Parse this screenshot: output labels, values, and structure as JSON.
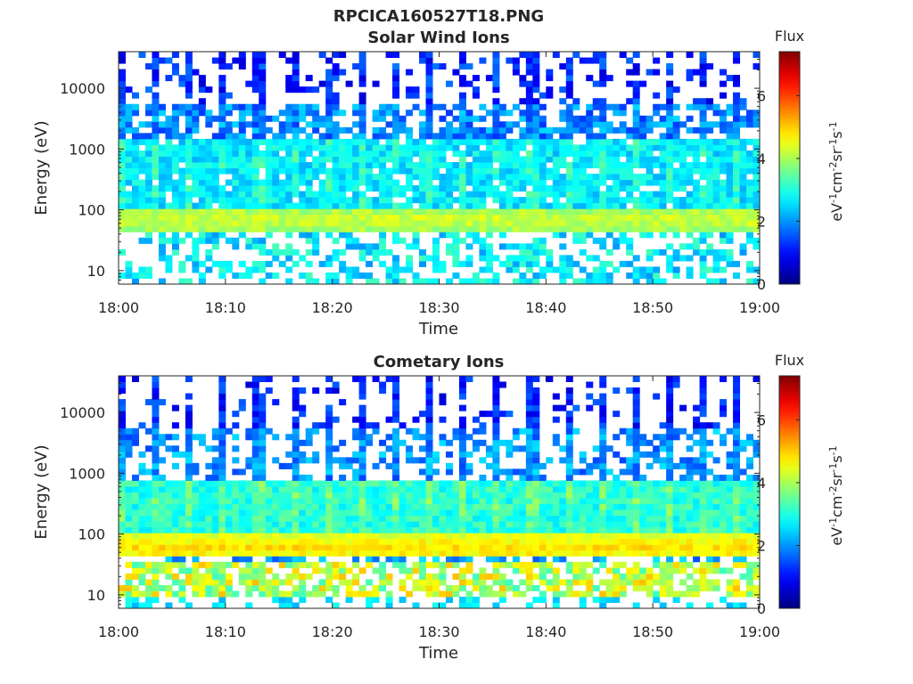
{
  "figure_title": "RPCICA160527T18.PNG",
  "colorbar_title": "Flux",
  "colorbar_unit_html": "eV<tspan baseline-shift='super' font-size='11'>-1</tspan>cm<tspan baseline-shift='super' font-size='11'>-2</tspan>sr<tspan baseline-shift='super' font-size='11'>-1</tspan>s<tspan baseline-shift='super' font-size='11'>-1</tspan>",
  "colorbar_unit": "eV-1cm-2sr-1s-1",
  "colors": {
    "jet_low": "#00008f",
    "jet_high": "#800000",
    "axis": "#262626"
  },
  "chart_data": [
    {
      "type": "heatmap",
      "title": "Solar Wind Ions",
      "xlabel": "Time",
      "ylabel": "Energy (eV)",
      "x_ticks": [
        "18:00",
        "18:10",
        "18:20",
        "18:30",
        "18:40",
        "18:50",
        "19:00"
      ],
      "xlim": [
        "18:00",
        "19:00"
      ],
      "y_scale": "log",
      "y_ticks": [
        10,
        100,
        1000,
        10000
      ],
      "y_tick_labels": [
        "10",
        "100",
        "1000",
        "10000"
      ],
      "ylim": [
        6,
        40000
      ],
      "colorbar": {
        "label": "Flux",
        "unit": "eV-1cm-2sr-1s-1",
        "range": [
          0,
          7.4
        ],
        "ticks": [
          0,
          2,
          4,
          6
        ],
        "colormap": "jet"
      },
      "sweep_period_min": 3.2,
      "profile": {
        "peak_energy_ev": 70,
        "peak_flux": 4.0,
        "background_flux": 2.3,
        "high_energy_sparse_above_ev": 5000
      }
    },
    {
      "type": "heatmap",
      "title": "Cometary Ions",
      "xlabel": "Time",
      "ylabel": "Energy (eV)",
      "x_ticks": [
        "18:00",
        "18:10",
        "18:20",
        "18:30",
        "18:40",
        "18:50",
        "19:00"
      ],
      "xlim": [
        "18:00",
        "19:00"
      ],
      "y_scale": "log",
      "y_ticks": [
        10,
        100,
        1000,
        10000
      ],
      "y_tick_labels": [
        "10",
        "100",
        "1000",
        "10000"
      ],
      "ylim": [
        6,
        40000
      ],
      "colorbar": {
        "label": "Flux",
        "unit": "eV-1cm-2sr-1s-1",
        "range": [
          0,
          7.4
        ],
        "ticks": [
          0,
          2,
          4,
          6
        ],
        "colormap": "jet"
      },
      "sweep_period_min": 3.2,
      "profile": {
        "peak_energy_ev": 60,
        "peak_flux": 4.6,
        "low_energy_band_ev": [
          12,
          30
        ],
        "low_energy_band_flux": 4.9,
        "high_energy_sparse_above_ev": 5000
      }
    }
  ]
}
